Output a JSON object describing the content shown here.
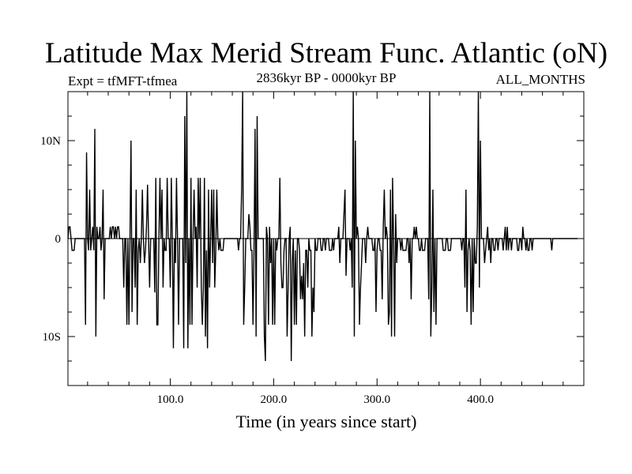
{
  "chart_data": {
    "type": "line",
    "title": "Latitude Max Merid Stream Func. Atlantic (oN)",
    "subtitle_left": "Expt = tfMFT-tfmea",
    "subtitle_center": "2836kyr BP - 0000kyr BP",
    "subtitle_right": "ALL_MONTHS",
    "xlabel": "Time (in years since start)",
    "ylabel": "",
    "xlim": [
      1,
      500
    ],
    "ylim": [
      -15,
      15
    ],
    "x_ticks": [
      100,
      200,
      300,
      400
    ],
    "x_tick_labels": [
      "100.0",
      "200.0",
      "300.0",
      "400.0"
    ],
    "y_ticks": [
      -10,
      0,
      10
    ],
    "y_tick_labels": [
      "10S",
      "0",
      "10N"
    ],
    "x_start": 1,
    "x_step": 1,
    "series": [
      {
        "name": "Latitude Max Merid Stream Func. Atlantic",
        "values": [
          0,
          1.2,
          1.2,
          0,
          -1.2,
          -1.2,
          -1.2,
          0,
          0,
          0,
          0,
          0,
          0,
          0,
          0,
          0,
          0,
          -8.8,
          8.8,
          0,
          -1.2,
          5,
          -1.2,
          0,
          1.2,
          -1.2,
          11.2,
          -10,
          1.2,
          0,
          0,
          1.2,
          -1.2,
          0,
          5,
          -6.2,
          0,
          0,
          0,
          0,
          0,
          1.2,
          0,
          1.2,
          1.2,
          0,
          1.2,
          0,
          1.2,
          1.2,
          0,
          0,
          0,
          0,
          -5,
          0,
          0,
          -8.8,
          0,
          -8.8,
          0,
          10,
          -7.5,
          0,
          0,
          -5,
          5,
          -8.8,
          -1.2,
          0,
          -2.5,
          0,
          5,
          0,
          -2.5,
          -1.2,
          1.2,
          5.5,
          0,
          -5,
          0,
          0,
          0,
          0,
          -5.5,
          6.2,
          -8.8,
          -8.8,
          0,
          6.2,
          0,
          5,
          -5,
          0,
          -1.2,
          -1.2,
          6.2,
          0,
          0,
          -5,
          6.2,
          0,
          -11.2,
          0,
          -2.5,
          6.2,
          0,
          -8.8,
          0,
          0,
          0,
          0,
          -11.2,
          12.5,
          -2.5,
          15,
          -11.2,
          0,
          -8.8,
          6.2,
          -8.8,
          0,
          5,
          0,
          1.2,
          -5,
          6.2,
          0,
          6.2,
          -5,
          -8.8,
          -5,
          6.2,
          -10,
          -1.2,
          -11.2,
          5,
          -5,
          0,
          5,
          -2.5,
          5,
          -5,
          -1.2,
          5,
          0,
          -1.2,
          0,
          -1.2,
          -1.2,
          -1.2,
          0,
          0,
          0,
          0,
          0,
          0,
          0,
          0,
          0,
          0,
          0,
          0,
          0,
          0,
          -1.2,
          0,
          0,
          5,
          15,
          -8.8,
          -5,
          0,
          0,
          0,
          2.5,
          1.2,
          -1.2,
          -1.2,
          -8.8,
          -1.2,
          11.2,
          -10,
          12.5,
          0,
          0,
          0,
          0,
          0,
          0,
          -10,
          -12.5,
          1.2,
          0,
          -8.8,
          1.2,
          -2.5,
          0,
          -8.8,
          0,
          -8.8,
          0,
          -1.2,
          0,
          0,
          6.2,
          -2.5,
          -5,
          -5,
          -1.2,
          0,
          0,
          -10,
          -5,
          0,
          1.2,
          -12.5,
          -2.5,
          0,
          -8.8,
          -1.2,
          -8.8,
          0,
          0,
          -1.2,
          -6.2,
          -3.8,
          -6.2,
          -2.5,
          -10,
          -1.2,
          -1.2,
          -5,
          0,
          -1.2,
          -1.2,
          -10,
          -5,
          -7.5,
          0,
          -1.2,
          -1.2,
          0,
          0,
          0,
          -1.2,
          -1.2,
          0,
          0,
          -1.2,
          0,
          0,
          0,
          -1.2,
          -1.2,
          -1.2,
          0,
          -1.2,
          0,
          0,
          0,
          0,
          1.2,
          -2.5,
          0,
          0,
          0,
          2.5,
          5,
          -3.8,
          0,
          0,
          0,
          -1.2,
          0,
          -5,
          15,
          -10,
          10,
          0,
          1.2,
          0,
          -8.8,
          -5,
          -2.5,
          0,
          0,
          0,
          -2.5,
          0,
          1.2,
          0,
          0,
          0,
          0,
          -1.2,
          -1.2,
          0,
          -7.5,
          -1.2,
          0,
          0,
          -1.2,
          -1.2,
          -6.2,
          1.2,
          5,
          0,
          1.2,
          0,
          -8.8,
          -7.5,
          5,
          -10,
          6.2,
          0,
          -10,
          2.5,
          -2.5,
          0,
          0,
          0,
          -1.2,
          0,
          -1.2,
          -1.2,
          -1.2,
          -1.2,
          0,
          0,
          -2.5,
          0,
          -6.2,
          0,
          0,
          1.2,
          0,
          1.2,
          0,
          0,
          -1.2,
          -1.2,
          0,
          -1.2,
          -1.2,
          -1.2,
          0,
          0,
          0,
          -6.2,
          15,
          -10,
          -5,
          5,
          -7.5,
          0,
          -8.8,
          0,
          0,
          0,
          0,
          0,
          0,
          -1.2,
          -1.2,
          -1.2,
          0,
          0,
          -1.2,
          -1.2,
          -1.2,
          0,
          0,
          0,
          0,
          0,
          0,
          0,
          0,
          0,
          0,
          -1.2,
          0,
          0,
          -5,
          5,
          -7.5,
          -1.2,
          0,
          -1.2,
          -8.8,
          0,
          -7.5,
          0,
          -2.5,
          -2.5,
          1.2,
          15,
          -5,
          10,
          0,
          0,
          0,
          -2.5,
          -1.2,
          0,
          1.2,
          -1.2,
          0,
          -2.5,
          0,
          0,
          -1.2,
          -1.2,
          0,
          0,
          -1.2,
          0,
          0,
          0,
          0,
          -1.2,
          0,
          1.2,
          -1.2,
          1.2,
          -1.2,
          0,
          0,
          -1.2,
          0,
          0,
          0,
          0,
          0,
          -1.2,
          -1.2,
          0,
          0,
          -1.2,
          1.2,
          0,
          0,
          -1.2,
          0,
          -1.2,
          -1.2,
          0,
          0,
          -1.2,
          0,
          0,
          0,
          0,
          0,
          0,
          0,
          0,
          0,
          0,
          0,
          0,
          0,
          0,
          0,
          0,
          0,
          0,
          -1.2,
          0,
          0,
          0,
          0,
          0,
          0,
          0,
          0,
          0,
          0,
          0,
          0,
          0,
          0,
          0,
          0,
          0,
          0,
          0,
          0,
          0,
          0,
          0,
          0,
          0
        ]
      }
    ]
  }
}
